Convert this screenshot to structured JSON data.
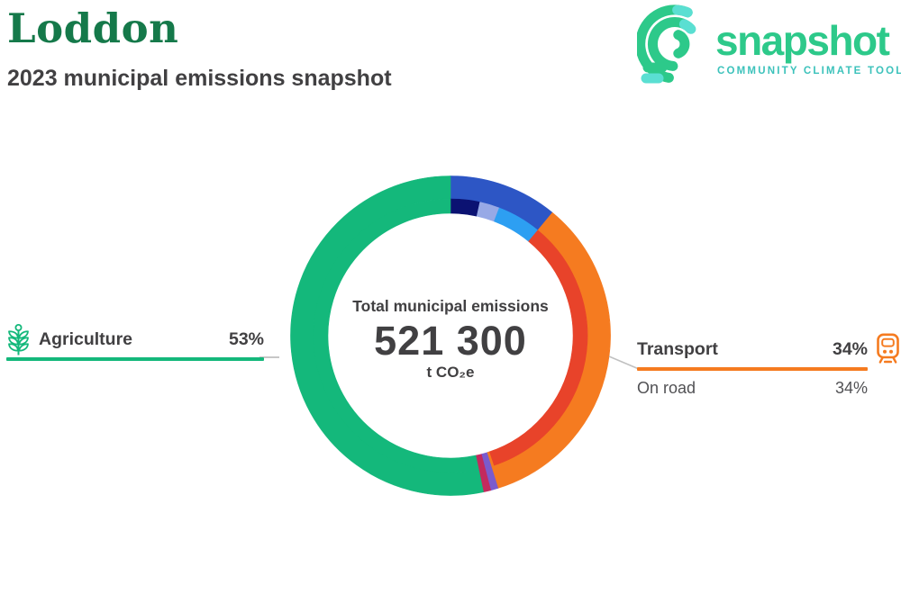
{
  "header": {
    "title": "Loddon",
    "subtitle": "2023 municipal emissions snapshot",
    "title_color": "#15794a"
  },
  "logo": {
    "wordmark": "snapshot",
    "tagline": "COMMUNITY CLIMATE TOOL",
    "brand_green": "#2dc98a",
    "tagline_teal": "#3cc2bb",
    "accent_teal": "#5adfd2"
  },
  "chart_data": {
    "type": "donut-sunburst",
    "center": {
      "label": "Total municipal emissions",
      "value": "521 300",
      "unit": "t CO₂e"
    },
    "rings": {
      "outer_sectors": [
        {
          "name": "unlabeled-blue",
          "pct": 11.0,
          "color": "#2d56c5"
        },
        {
          "name": "Transport",
          "pct": 34.2,
          "color": "#f57b20"
        },
        {
          "name": "unlabeled-purple",
          "pct": 0.75,
          "color": "#7a5bcd"
        },
        {
          "name": "unlabeled-magenta",
          "pct": 0.75,
          "color": "#c22a5e"
        },
        {
          "name": "Agriculture",
          "pct": 53.3,
          "color": "#14b87b"
        }
      ],
      "inner_subsectors": [
        {
          "name": "unlabeled-navy",
          "pct": 3.45,
          "color": "#0b1272"
        },
        {
          "name": "unlabeled-periwinkle",
          "pct": 2.35,
          "color": "#97a9e6"
        },
        {
          "name": "unlabeled-lightblue",
          "pct": 5.2,
          "color": "#2d9ff2"
        },
        {
          "name": "On road",
          "pct": 33.9,
          "color": "#e8432a"
        },
        {
          "name": "transport-remainder",
          "pct": 0.3,
          "color": "#f57b20"
        },
        {
          "name": "unlabeled-purple",
          "pct": 0.75,
          "color": "#7a5bcd"
        },
        {
          "name": "unlabeled-magenta",
          "pct": 0.75,
          "color": "#c22a5e"
        },
        {
          "name": "Agriculture",
          "pct": 53.3,
          "color": "#14b87b"
        }
      ]
    }
  },
  "callouts": {
    "agriculture": {
      "label": "Agriculture",
      "value": "53%",
      "color": "#14b87b",
      "icon": "plant-icon"
    },
    "transport": {
      "label": "Transport",
      "value": "34%",
      "color": "#f57b20",
      "icon": "train-icon",
      "subrows": [
        {
          "label": "On road",
          "value": "34%"
        }
      ]
    }
  }
}
